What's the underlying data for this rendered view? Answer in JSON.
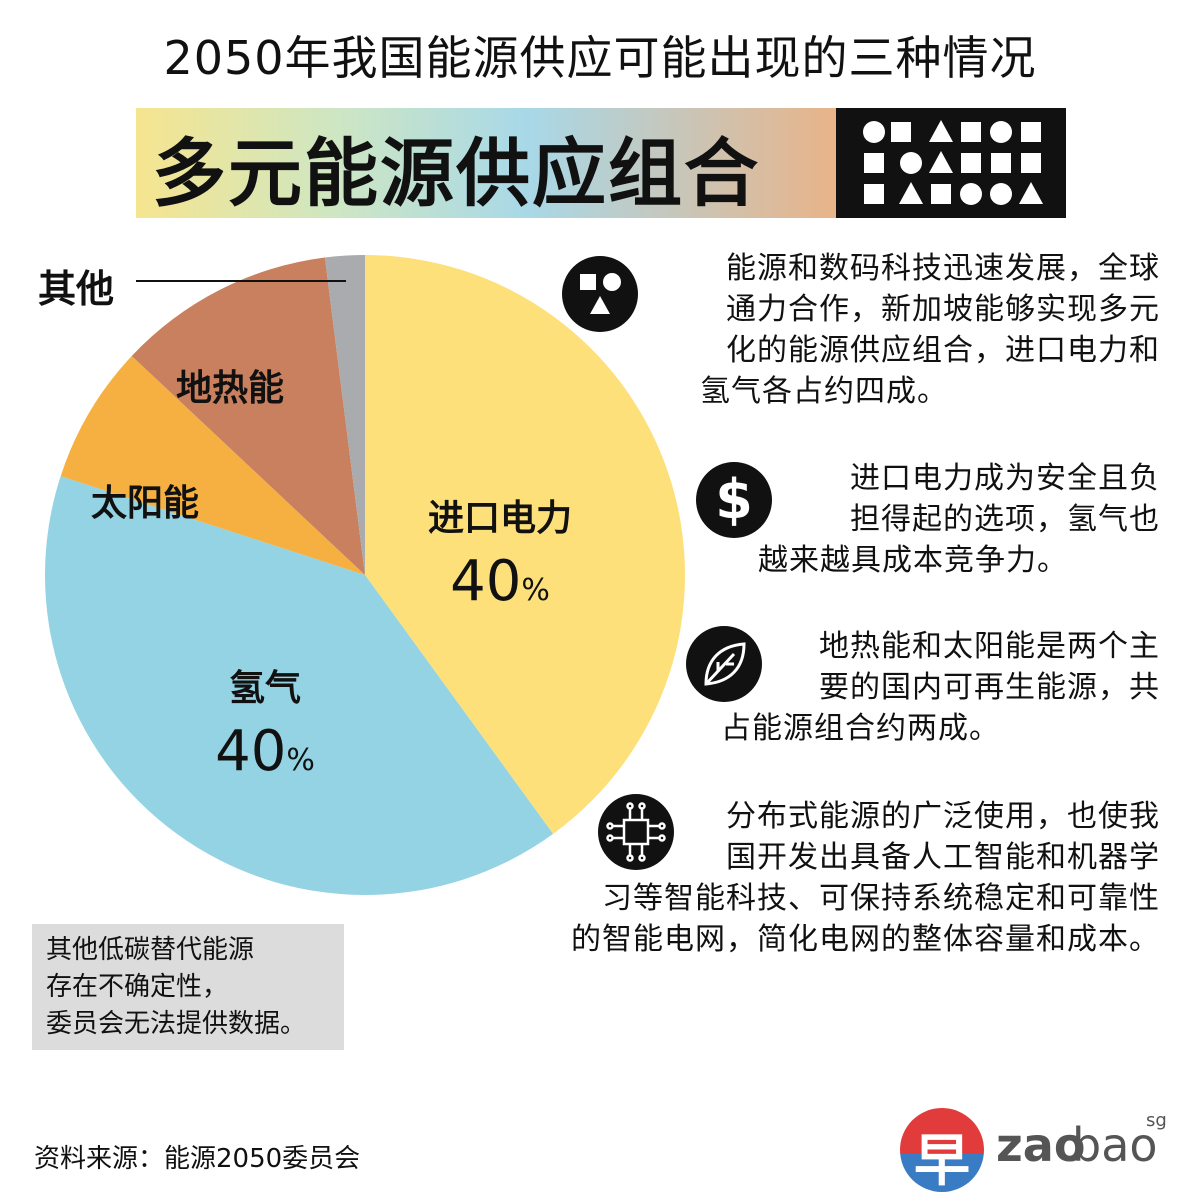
{
  "header": {
    "title": "2050年我国能源供应可能出现的三种情况",
    "banner": "多元能源供应组合"
  },
  "chart_data": {
    "type": "pie",
    "slices": [
      {
        "label": "进口电力",
        "value": 40,
        "pct_text": "40",
        "color": "#fde07a"
      },
      {
        "label": "氢气",
        "value": 40,
        "pct_text": "40",
        "color": "#93d3e3"
      },
      {
        "label": "太阳能",
        "value": 7,
        "color": "#f6b042"
      },
      {
        "label": "地热能",
        "value": 11,
        "color": "#c9805e"
      },
      {
        "label": "其他",
        "value": 2,
        "color": "#a9abae"
      }
    ],
    "percent_sign": "%"
  },
  "notes": [
    {
      "icon": "shapes-icon",
      "lines": [
        "能源和数码科技迅速发展，全球",
        "通力合作，新加坡能够实现多元",
        "化的能源供应组合，进口电力和",
        "氢气各占约四成。"
      ]
    },
    {
      "icon": "dollar-icon",
      "lines": [
        "进口电力成为安全且负",
        "担得起的选项，氢气也",
        "越来越具成本竞争力。"
      ]
    },
    {
      "icon": "leaf-icon",
      "lines": [
        "地热能和太阳能是两个主",
        "要的国内可再生能源，共",
        "占能源组合约两成。"
      ]
    },
    {
      "icon": "chip-icon",
      "lines": [
        "分布式能源的广泛使用，也使我",
        "国开发出具备人工智能和机器学",
        "习等智能科技、可保持系统稳定和可靠性",
        "的智能电网，简化电网的整体容量和成本。"
      ]
    }
  ],
  "footnote": [
    "其他低碳替代能源",
    "存在不确定性，",
    "委员会无法提供数据。"
  ],
  "source": "资料来源：能源2050委员会",
  "logo": {
    "glyph": "早",
    "zao": "zao",
    "bao": "bao",
    "sg": "sg"
  }
}
